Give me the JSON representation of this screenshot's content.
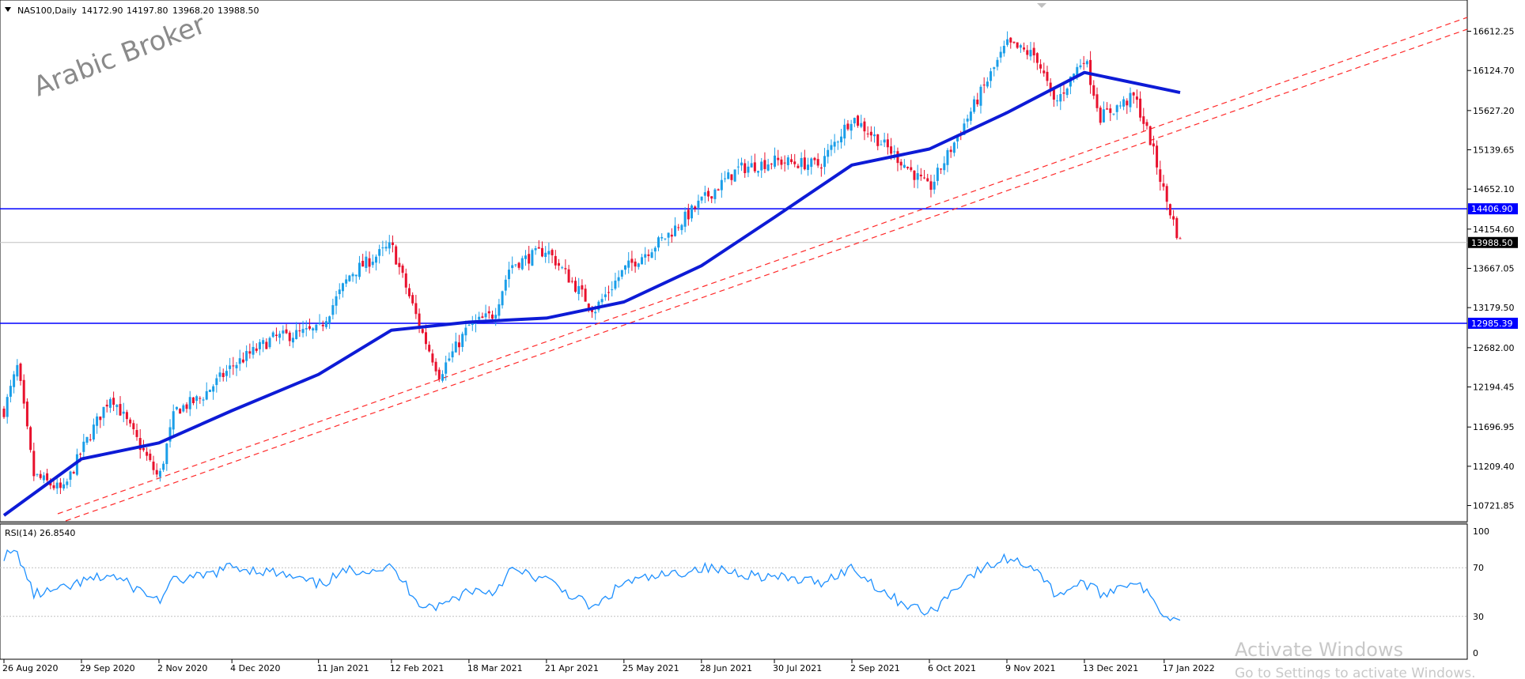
{
  "main_chart": {
    "header": {
      "symbol": "NAS100,Daily",
      "open": "14172.90",
      "high": "14197.80",
      "low": "13968.20",
      "close": "13988.50"
    },
    "watermark": "Arabic Broker",
    "price_ticks": [
      "16612.25",
      "16124.70",
      "15627.20",
      "15139.65",
      "14652.10",
      "14154.60",
      "13667.05",
      "13179.50",
      "12682.00",
      "12194.45",
      "11696.95",
      "11209.40",
      "10721.85"
    ],
    "price_tick_values": [
      16612.25,
      16124.7,
      15627.2,
      15139.65,
      14652.1,
      14154.6,
      13667.05,
      13179.5,
      12682.0,
      12194.45,
      11696.95,
      11209.4,
      10721.85
    ],
    "price_range": [
      10521.0,
      17000.0
    ],
    "hlines": [
      {
        "label": "14406.90",
        "value": 14406.9,
        "color": "#0000ff"
      },
      {
        "label": "12985.39",
        "value": 12985.39,
        "color": "#0000ff"
      }
    ],
    "current_price": {
      "label": "13988.50",
      "value": 13988.5
    },
    "moving_average_color": "#0d1bd6",
    "bull_color": "#1a9ee8",
    "bear_color": "#e8112d",
    "trendline_color": "#ff2a2a"
  },
  "rsi_panel": {
    "label": "RSI(14) 26.8540",
    "ticks": [
      "100",
      "70",
      "30",
      "0"
    ],
    "tick_values": [
      100,
      70,
      30,
      0
    ],
    "line_color": "#1e90ff"
  },
  "date_labels": [
    "26 Aug 2020",
    "29 Sep 2020",
    "2 Nov 2020",
    "4 Dec 2020",
    "11 Jan 2021",
    "12 Feb 2021",
    "18 Mar 2021",
    "21 Apr 2021",
    "25 May 2021",
    "28 Jun 2021",
    "30 Jul 2021",
    "2 Sep 2021",
    "6 Oct 2021",
    "9 Nov 2021",
    "13 Dec 2021",
    "17 Jan 2022"
  ],
  "activation": {
    "line1": "Activate Windows",
    "line2": "Go to Settings to activate Windows."
  },
  "chart_data": {
    "type": "candlestick",
    "title": "NAS100,Daily",
    "date_start": "2020-08-26",
    "date_end": "2022-01-24",
    "ylim": [
      10521.0,
      17000.0
    ],
    "y_ticks": [
      16612.25,
      16124.7,
      15627.2,
      15139.65,
      14652.1,
      14154.6,
      13667.05,
      13179.5,
      12682.0,
      12194.45,
      11696.95,
      11209.4,
      10721.85
    ],
    "x_tick_labels": [
      "26 Aug 2020",
      "29 Sep 2020",
      "2 Nov 2020",
      "4 Dec 2020",
      "11 Jan 2021",
      "12 Feb 2021",
      "18 Mar 2021",
      "21 Apr 2021",
      "25 May 2021",
      "28 Jun 2021",
      "30 Jul 2021",
      "2 Sep 2021",
      "6 Oct 2021",
      "9 Nov 2021",
      "13 Dec 2021",
      "17 Jan 2022"
    ],
    "close_path": [
      [
        "26 Aug 2020",
        11900
      ],
      [
        "1 Sep 2020",
        12450
      ],
      [
        "8 Sep 2020",
        11100
      ],
      [
        "21 Sep 2020",
        10900
      ],
      [
        "29 Sep 2020",
        11400
      ],
      [
        "12 Oct 2020",
        12100
      ],
      [
        "2 Nov 2020",
        11050
      ],
      [
        "9 Nov 2020",
        11900
      ],
      [
        "20 Nov 2020",
        12050
      ],
      [
        "4 Dec 2020",
        12450
      ],
      [
        "22 Dec 2020",
        12800
      ],
      [
        "11 Jan 2021",
        12900
      ],
      [
        "25 Jan 2021",
        13600
      ],
      [
        "12 Feb 2021",
        13950
      ],
      [
        "25 Feb 2021",
        12900
      ],
      [
        "5 Mar 2021",
        12350
      ],
      [
        "18 Mar 2021",
        12950
      ],
      [
        "29 Mar 2021",
        13100
      ],
      [
        "5 Apr 2021",
        13700
      ],
      [
        "21 Apr 2021",
        13900
      ],
      [
        "12 May 2021",
        13150
      ],
      [
        "25 May 2021",
        13650
      ],
      [
        "14 Jun 2021",
        14100
      ],
      [
        "28 Jun 2021",
        14500
      ],
      [
        "14 Jul 2021",
        14900
      ],
      [
        "30 Jul 2021",
        15000
      ],
      [
        "19 Aug 2021",
        14950
      ],
      [
        "2 Sep 2021",
        15550
      ],
      [
        "20 Sep 2021",
        15100
      ],
      [
        "6 Oct 2021",
        14650
      ],
      [
        "22 Oct 2021",
        15500
      ],
      [
        "9 Nov 2021",
        16450
      ],
      [
        "22 Nov 2021",
        16300
      ],
      [
        "30 Nov 2021",
        15700
      ],
      [
        "13 Dec 2021",
        16300
      ],
      [
        "20 Dec 2021",
        15550
      ],
      [
        "4 Jan 2022",
        15800
      ],
      [
        "11 Jan 2022",
        15250
      ],
      [
        "17 Jan 2022",
        14600
      ],
      [
        "24 Jan 2022",
        13988.5
      ]
    ],
    "moving_average_path": [
      [
        "26 Aug 2020",
        10600
      ],
      [
        "29 Sep 2020",
        11300
      ],
      [
        "2 Nov 2020",
        11500
      ],
      [
        "4 Dec 2020",
        11900
      ],
      [
        "11 Jan 2021",
        12350
      ],
      [
        "12 Feb 2021",
        12900
      ],
      [
        "18 Mar 2021",
        13000
      ],
      [
        "21 Apr 2021",
        13050
      ],
      [
        "25 May 2021",
        13250
      ],
      [
        "28 Jun 2021",
        13700
      ],
      [
        "30 Jul 2021",
        14300
      ],
      [
        "2 Sep 2021",
        14950
      ],
      [
        "6 Oct 2021",
        15150
      ],
      [
        "9 Nov 2021",
        15600
      ],
      [
        "13 Dec 2021",
        16100
      ],
      [
        "24 Jan 2022",
        15850
      ]
    ],
    "horizontal_levels": [
      14406.9,
      12985.39
    ],
    "current_price": 13988.5,
    "rsi": {
      "label": "RSI(14) 26.8540",
      "ylim": [
        0,
        100
      ],
      "levels": [
        70,
        30
      ],
      "last": 26.854,
      "path": [
        [
          "26 Aug 2020",
          80
        ],
        [
          "1 Sep 2020",
          82
        ],
        [
          "8 Sep 2020",
          48
        ],
        [
          "21 Sep 2020",
          52
        ],
        [
          "29 Sep 2020",
          58
        ],
        [
          "12 Oct 2020",
          64
        ],
        [
          "2 Nov 2020",
          43
        ],
        [
          "9 Nov 2020",
          60
        ],
        [
          "20 Nov 2020",
          62
        ],
        [
          "4 Dec 2020",
          71
        ],
        [
          "22 Dec 2020",
          66
        ],
        [
          "11 Jan 2021",
          56
        ],
        [
          "25 Jan 2021",
          68
        ],
        [
          "12 Feb 2021",
          70
        ],
        [
          "25 Feb 2021",
          40
        ],
        [
          "5 Mar 2021",
          38
        ],
        [
          "18 Mar 2021",
          52
        ],
        [
          "29 Mar 2021",
          50
        ],
        [
          "5 Apr 2021",
          68
        ],
        [
          "21 Apr 2021",
          60
        ],
        [
          "12 May 2021",
          36
        ],
        [
          "25 May 2021",
          58
        ],
        [
          "14 Jun 2021",
          64
        ],
        [
          "28 Jun 2021",
          70
        ],
        [
          "14 Jul 2021",
          66
        ],
        [
          "30 Jul 2021",
          62
        ],
        [
          "19 Aug 2021",
          58
        ],
        [
          "2 Sep 2021",
          70
        ],
        [
          "20 Sep 2021",
          45
        ],
        [
          "6 Oct 2021",
          32
        ],
        [
          "22 Oct 2021",
          62
        ],
        [
          "9 Nov 2021",
          78
        ],
        [
          "22 Nov 2021",
          70
        ],
        [
          "30 Nov 2021",
          48
        ],
        [
          "13 Dec 2021",
          58
        ],
        [
          "20 Dec 2021",
          48
        ],
        [
          "4 Jan 2022",
          60
        ],
        [
          "11 Jan 2022",
          45
        ],
        [
          "17 Jan 2022",
          32
        ],
        [
          "24 Jan 2022",
          26.854
        ]
      ]
    }
  }
}
